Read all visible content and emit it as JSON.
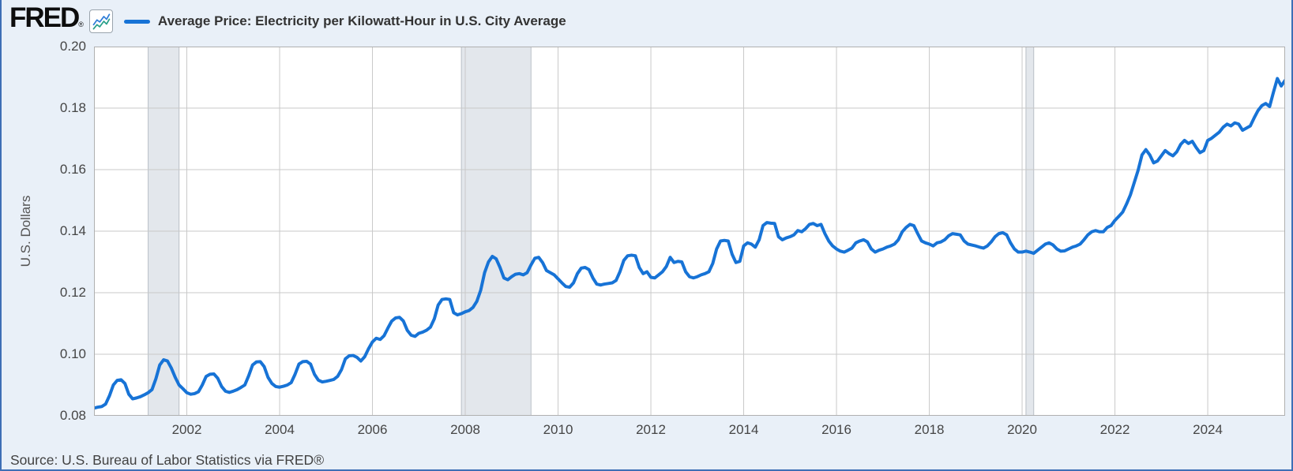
{
  "header": {
    "logo_text": "FRED",
    "registered_mark": "®",
    "legend_label": "Average Price: Electricity per Kilowatt-Hour in U.S. City Average"
  },
  "footer": {
    "source_text": "Source: U.S. Bureau of Labor Statistics via FRED®"
  },
  "colors": {
    "line": "#1773d6",
    "page_background": "#e9f0f8",
    "plot_background": "#ffffff",
    "gridline": "#c9c9c9",
    "plot_border": "#b0b0b0",
    "recession_band": "#e3e7ec",
    "recession_band_edge": "#b9bfc6",
    "outer_border_blue": "#3e6fb6"
  },
  "chart_data": {
    "type": "line",
    "title": "Average Price: Electricity per Kilowatt-Hour in U.S. City Average",
    "ylabel": "U.S. Dollars",
    "xlabel": "",
    "frequency": "monthly",
    "x_start_year": 2000,
    "x_start_month": 1,
    "xlim": [
      2000.0,
      2025.667
    ],
    "ylim": [
      0.08,
      0.2
    ],
    "y_ticks": [
      0.08,
      0.1,
      0.12,
      0.14,
      0.16,
      0.18,
      0.2
    ],
    "x_ticks": [
      2002,
      2004,
      2006,
      2008,
      2010,
      2012,
      2014,
      2016,
      2018,
      2020,
      2022,
      2024
    ],
    "grid": true,
    "legend_position": "top-left",
    "recession_bands": [
      {
        "start": 2001.167,
        "end": 2001.833
      },
      {
        "start": 2007.917,
        "end": 2009.417
      },
      {
        "start": 2020.083,
        "end": 2020.25
      }
    ],
    "series": [
      {
        "name": "Average Price: Electricity per Kilowatt-Hour in U.S. City Average",
        "units": "U.S. Dollars",
        "values": [
          0.0825,
          0.0828,
          0.083,
          0.0838,
          0.0865,
          0.09,
          0.0915,
          0.0917,
          0.0905,
          0.087,
          0.0855,
          0.0858,
          0.0862,
          0.0868,
          0.0875,
          0.0885,
          0.092,
          0.0965,
          0.0982,
          0.0978,
          0.0955,
          0.0925,
          0.09,
          0.0888,
          0.0875,
          0.087,
          0.0872,
          0.0878,
          0.09,
          0.0928,
          0.0935,
          0.0936,
          0.0922,
          0.0895,
          0.088,
          0.0876,
          0.088,
          0.0885,
          0.0892,
          0.09,
          0.093,
          0.0965,
          0.0975,
          0.0976,
          0.096,
          0.0925,
          0.0905,
          0.0895,
          0.0893,
          0.0896,
          0.09,
          0.0908,
          0.0935,
          0.0968,
          0.0976,
          0.0977,
          0.0968,
          0.0935,
          0.0916,
          0.091,
          0.0912,
          0.0915,
          0.0918,
          0.0928,
          0.095,
          0.0985,
          0.0995,
          0.0996,
          0.099,
          0.0978,
          0.0992,
          0.1018,
          0.104,
          0.1052,
          0.1048,
          0.106,
          0.1085,
          0.1108,
          0.1118,
          0.112,
          0.1108,
          0.1078,
          0.1062,
          0.1058,
          0.1068,
          0.1072,
          0.1078,
          0.1088,
          0.1115,
          0.116,
          0.1178,
          0.118,
          0.1178,
          0.1135,
          0.1128,
          0.1132,
          0.1138,
          0.1142,
          0.1152,
          0.1172,
          0.1208,
          0.1265,
          0.13,
          0.1318,
          0.131,
          0.1282,
          0.1248,
          0.1242,
          0.1252,
          0.126,
          0.1262,
          0.1258,
          0.1265,
          0.129,
          0.1312,
          0.1315,
          0.1298,
          0.1272,
          0.1265,
          0.1258,
          0.1245,
          0.1232,
          0.122,
          0.1218,
          0.1232,
          0.1262,
          0.128,
          0.1282,
          0.1275,
          0.1248,
          0.1228,
          0.1225,
          0.1228,
          0.123,
          0.1232,
          0.124,
          0.1268,
          0.1305,
          0.132,
          0.1322,
          0.132,
          0.1282,
          0.1262,
          0.1268,
          0.125,
          0.1248,
          0.1258,
          0.1268,
          0.1285,
          0.1315,
          0.1298,
          0.1302,
          0.13,
          0.1268,
          0.1252,
          0.1248,
          0.1252,
          0.1258,
          0.1262,
          0.1268,
          0.1295,
          0.1342,
          0.1368,
          0.137,
          0.1368,
          0.1325,
          0.1298,
          0.1302,
          0.1352,
          0.1362,
          0.1358,
          0.1348,
          0.1372,
          0.1418,
          0.1428,
          0.1426,
          0.1425,
          0.1382,
          0.1372,
          0.1378,
          0.1382,
          0.1388,
          0.1402,
          0.1398,
          0.1408,
          0.1422,
          0.1425,
          0.1418,
          0.1422,
          0.1392,
          0.1368,
          0.1352,
          0.1342,
          0.1335,
          0.1332,
          0.1338,
          0.1345,
          0.1362,
          0.1368,
          0.1372,
          0.1365,
          0.1342,
          0.1332,
          0.1338,
          0.1342,
          0.1348,
          0.1352,
          0.1358,
          0.1372,
          0.1398,
          0.1412,
          0.1422,
          0.1418,
          0.1392,
          0.1368,
          0.1362,
          0.1358,
          0.1352,
          0.1362,
          0.1365,
          0.1372,
          0.1385,
          0.1392,
          0.139,
          0.1388,
          0.1368,
          0.1358,
          0.1355,
          0.1352,
          0.1348,
          0.1345,
          0.1352,
          0.1365,
          0.1382,
          0.1392,
          0.1395,
          0.1388,
          0.1362,
          0.1342,
          0.1332,
          0.1332,
          0.1335,
          0.1332,
          0.1328,
          0.1338,
          0.1348,
          0.1358,
          0.1362,
          0.1355,
          0.1342,
          0.1335,
          0.1336,
          0.1342,
          0.1348,
          0.1352,
          0.1358,
          0.1372,
          0.1388,
          0.1398,
          0.1402,
          0.1398,
          0.1398,
          0.1412,
          0.1418,
          0.1435,
          0.1448,
          0.1462,
          0.1488,
          0.1518,
          0.1558,
          0.1598,
          0.1648,
          0.1665,
          0.1648,
          0.1622,
          0.1628,
          0.1645,
          0.1662,
          0.1652,
          0.1645,
          0.1658,
          0.1682,
          0.1695,
          0.1685,
          0.1692,
          0.1672,
          0.1655,
          0.1662,
          0.1695,
          0.1702,
          0.1712,
          0.1722,
          0.1738,
          0.1748,
          0.1742,
          0.1752,
          0.1748,
          0.1728,
          0.1735,
          0.1742,
          0.1768,
          0.1792,
          0.1808,
          0.1815,
          0.1805,
          0.1852,
          0.1896,
          0.1872,
          0.189
        ]
      }
    ]
  }
}
